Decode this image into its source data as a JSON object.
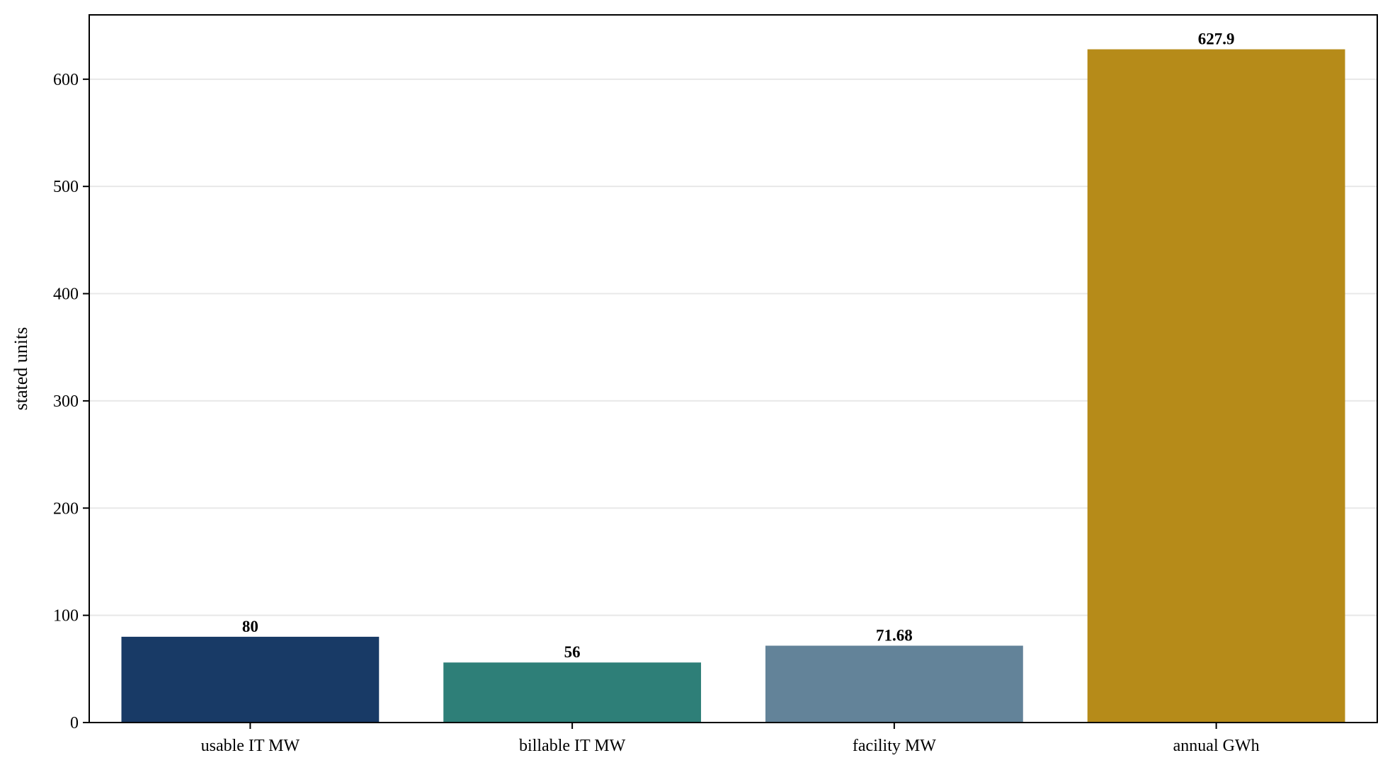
{
  "chart_data": {
    "type": "bar",
    "title": "",
    "xlabel": "",
    "ylabel": "stated units",
    "categories": [
      "usable IT MW",
      "billable IT MW",
      "facility MW",
      "annual GWh"
    ],
    "values": [
      80,
      56,
      71.68,
      627.9
    ],
    "value_labels": [
      "80",
      "56",
      "71.68",
      "627.9"
    ],
    "colors": [
      "#183a66",
      "#2e7f78",
      "#638399",
      "#b68b19"
    ],
    "ylim": [
      0,
      660
    ],
    "yticks": [
      0,
      100,
      200,
      300,
      400,
      500,
      600
    ],
    "grid": "horizontal",
    "legend": "none"
  }
}
